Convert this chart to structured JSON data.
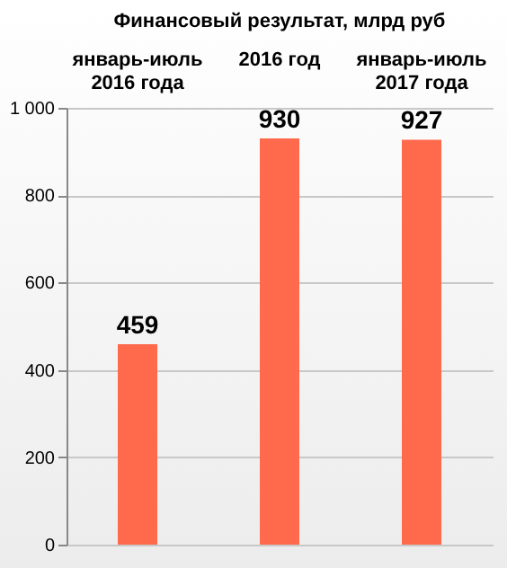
{
  "chart_data": {
    "type": "bar",
    "title": "Финансовый  результат,  млрд руб",
    "categories": [
      "январь-июль\n2016 года",
      "2016 год",
      "январь-июль\n2017 года"
    ],
    "values": [
      459,
      930,
      927
    ],
    "color": "#ff6a4d",
    "ylim": [
      0,
      1000
    ],
    "yticks": [
      0,
      200,
      400,
      600,
      800,
      {
        "value": 1000,
        "label": "1 000"
      }
    ],
    "grid": "y",
    "data_labels": true
  }
}
